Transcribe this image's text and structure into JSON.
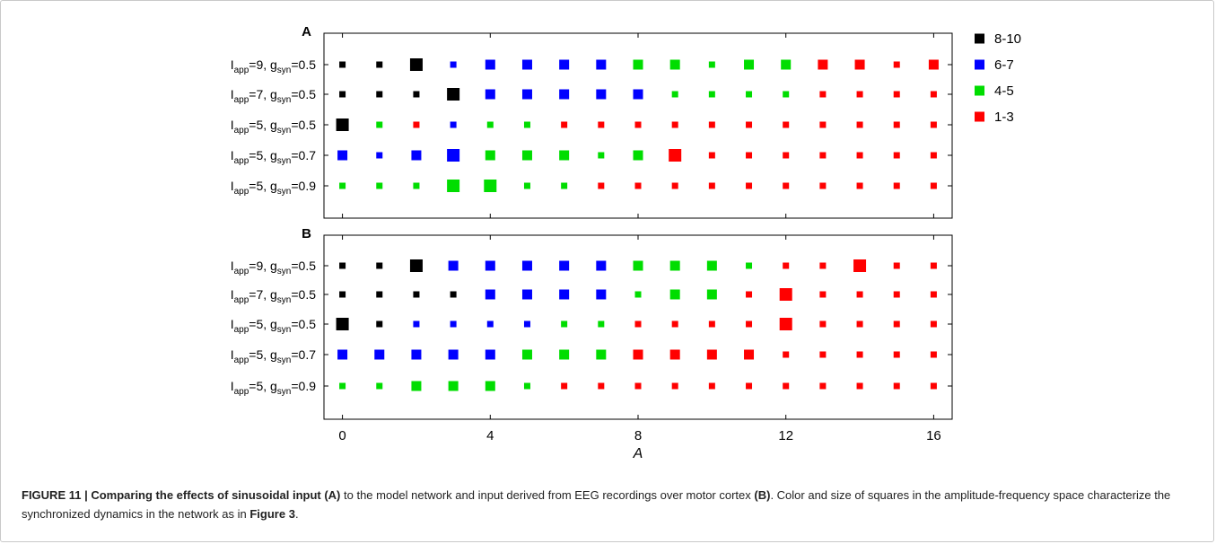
{
  "chart_data": [
    {
      "type": "scatter",
      "panel_label": "A",
      "xlabel": "",
      "row_labels": [
        {
          "base": "I",
          "sub1": "app",
          "mid": "=9, g",
          "sub2": "syn",
          "end": "=0.5"
        },
        {
          "base": "I",
          "sub1": "app",
          "mid": "=7, g",
          "sub2": "syn",
          "end": "=0.5"
        },
        {
          "base": "I",
          "sub1": "app",
          "mid": "=5, g",
          "sub2": "syn",
          "end": "=0.5"
        },
        {
          "base": "I",
          "sub1": "app",
          "mid": "=5, g",
          "sub2": "syn",
          "end": "=0.7"
        },
        {
          "base": "I",
          "sub1": "app",
          "mid": "=5, g",
          "sub2": "syn",
          "end": "=0.9"
        }
      ],
      "x": [
        0,
        1,
        2,
        3,
        4,
        5,
        6,
        7,
        8,
        9,
        10,
        11,
        12,
        13,
        14,
        15,
        16
      ],
      "xlim": [
        -0.5,
        16.5
      ],
      "x_ticks": [
        0,
        4,
        8,
        12,
        16
      ],
      "legend": {
        "placement": "top-right",
        "entries": [
          {
            "label": "8-10",
            "color": "#000000"
          },
          {
            "label": "6-7",
            "color": "#0000ff"
          },
          {
            "label": "4-5",
            "color": "#00dd00"
          },
          {
            "label": "1-3",
            "color": "#ff0000"
          }
        ]
      },
      "cells": [
        [
          [
            0,
            1
          ],
          [
            0,
            1
          ],
          [
            0,
            3
          ],
          [
            1,
            1
          ],
          [
            1,
            2
          ],
          [
            1,
            2
          ],
          [
            1,
            2
          ],
          [
            1,
            2
          ],
          [
            2,
            2
          ],
          [
            2,
            2
          ],
          [
            2,
            1
          ],
          [
            2,
            2
          ],
          [
            2,
            2
          ],
          [
            3,
            2
          ],
          [
            3,
            2
          ],
          [
            3,
            1
          ],
          [
            3,
            2
          ]
        ],
        [
          [
            0,
            1
          ],
          [
            0,
            1
          ],
          [
            0,
            1
          ],
          [
            0,
            3
          ],
          [
            1,
            2
          ],
          [
            1,
            2
          ],
          [
            1,
            2
          ],
          [
            1,
            2
          ],
          [
            1,
            2
          ],
          [
            2,
            1
          ],
          [
            2,
            1
          ],
          [
            2,
            1
          ],
          [
            2,
            1
          ],
          [
            3,
            1
          ],
          [
            3,
            1
          ],
          [
            3,
            1
          ],
          [
            3,
            1
          ]
        ],
        [
          [
            0,
            3
          ],
          [
            2,
            1
          ],
          [
            3,
            1
          ],
          [
            1,
            1
          ],
          [
            2,
            1
          ],
          [
            2,
            1
          ],
          [
            3,
            1
          ],
          [
            3,
            1
          ],
          [
            3,
            1
          ],
          [
            3,
            1
          ],
          [
            3,
            1
          ],
          [
            3,
            1
          ],
          [
            3,
            1
          ],
          [
            3,
            1
          ],
          [
            3,
            1
          ],
          [
            3,
            1
          ],
          [
            3,
            1
          ]
        ],
        [
          [
            1,
            2
          ],
          [
            1,
            1
          ],
          [
            1,
            2
          ],
          [
            1,
            3
          ],
          [
            2,
            2
          ],
          [
            2,
            2
          ],
          [
            2,
            2
          ],
          [
            2,
            1
          ],
          [
            2,
            2
          ],
          [
            3,
            3
          ],
          [
            3,
            1
          ],
          [
            3,
            1
          ],
          [
            3,
            1
          ],
          [
            3,
            1
          ],
          [
            3,
            1
          ],
          [
            3,
            1
          ],
          [
            3,
            1
          ]
        ],
        [
          [
            2,
            1
          ],
          [
            2,
            1
          ],
          [
            2,
            1
          ],
          [
            2,
            3
          ],
          [
            2,
            3
          ],
          [
            2,
            1
          ],
          [
            2,
            1
          ],
          [
            3,
            1
          ],
          [
            3,
            1
          ],
          [
            3,
            1
          ],
          [
            3,
            1
          ],
          [
            3,
            1
          ],
          [
            3,
            1
          ],
          [
            3,
            1
          ],
          [
            3,
            1
          ],
          [
            3,
            1
          ],
          [
            3,
            1
          ]
        ]
      ]
    },
    {
      "type": "scatter",
      "panel_label": "B",
      "xlabel": "A",
      "row_labels": [
        {
          "base": "I",
          "sub1": "app",
          "mid": "=9, g",
          "sub2": "syn",
          "end": "=0.5"
        },
        {
          "base": "I",
          "sub1": "app",
          "mid": "=7, g",
          "sub2": "syn",
          "end": "=0.5"
        },
        {
          "base": "I",
          "sub1": "app",
          "mid": "=5, g",
          "sub2": "syn",
          "end": "=0.5"
        },
        {
          "base": "I",
          "sub1": "app",
          "mid": "=5, g",
          "sub2": "syn",
          "end": "=0.7"
        },
        {
          "base": "I",
          "sub1": "app",
          "mid": "=5, g",
          "sub2": "syn",
          "end": "=0.9"
        }
      ],
      "x": [
        0,
        1,
        2,
        3,
        4,
        5,
        6,
        7,
        8,
        9,
        10,
        11,
        12,
        13,
        14,
        15,
        16
      ],
      "xlim": [
        -0.5,
        16.5
      ],
      "x_ticks": [
        0,
        4,
        8,
        12,
        16
      ],
      "x_tick_labels": [
        "0",
        "4",
        "8",
        "12",
        "16"
      ],
      "cells": [
        [
          [
            0,
            1
          ],
          [
            0,
            1
          ],
          [
            0,
            3
          ],
          [
            1,
            2
          ],
          [
            1,
            2
          ],
          [
            1,
            2
          ],
          [
            1,
            2
          ],
          [
            1,
            2
          ],
          [
            2,
            2
          ],
          [
            2,
            2
          ],
          [
            2,
            2
          ],
          [
            2,
            1
          ],
          [
            3,
            1
          ],
          [
            3,
            1
          ],
          [
            3,
            3
          ],
          [
            3,
            1
          ],
          [
            3,
            1
          ]
        ],
        [
          [
            0,
            1
          ],
          [
            0,
            1
          ],
          [
            0,
            1
          ],
          [
            0,
            1
          ],
          [
            1,
            2
          ],
          [
            1,
            2
          ],
          [
            1,
            2
          ],
          [
            1,
            2
          ],
          [
            2,
            1
          ],
          [
            2,
            2
          ],
          [
            2,
            2
          ],
          [
            3,
            1
          ],
          [
            3,
            3
          ],
          [
            3,
            1
          ],
          [
            3,
            1
          ],
          [
            3,
            1
          ],
          [
            3,
            1
          ]
        ],
        [
          [
            0,
            3
          ],
          [
            0,
            1
          ],
          [
            1,
            1
          ],
          [
            1,
            1
          ],
          [
            1,
            1
          ],
          [
            1,
            1
          ],
          [
            2,
            1
          ],
          [
            2,
            1
          ],
          [
            3,
            1
          ],
          [
            3,
            1
          ],
          [
            3,
            1
          ],
          [
            3,
            1
          ],
          [
            3,
            3
          ],
          [
            3,
            1
          ],
          [
            3,
            1
          ],
          [
            3,
            1
          ],
          [
            3,
            1
          ]
        ],
        [
          [
            1,
            2
          ],
          [
            1,
            2
          ],
          [
            1,
            2
          ],
          [
            1,
            2
          ],
          [
            1,
            2
          ],
          [
            2,
            2
          ],
          [
            2,
            2
          ],
          [
            2,
            2
          ],
          [
            3,
            2
          ],
          [
            3,
            2
          ],
          [
            3,
            2
          ],
          [
            3,
            2
          ],
          [
            3,
            1
          ],
          [
            3,
            1
          ],
          [
            3,
            1
          ],
          [
            3,
            1
          ],
          [
            3,
            1
          ]
        ],
        [
          [
            2,
            1
          ],
          [
            2,
            1
          ],
          [
            2,
            2
          ],
          [
            2,
            2
          ],
          [
            2,
            2
          ],
          [
            2,
            1
          ],
          [
            3,
            1
          ],
          [
            3,
            1
          ],
          [
            3,
            1
          ],
          [
            3,
            1
          ],
          [
            3,
            1
          ],
          [
            3,
            1
          ],
          [
            3,
            1
          ],
          [
            3,
            1
          ],
          [
            3,
            1
          ],
          [
            3,
            1
          ],
          [
            3,
            1
          ]
        ]
      ]
    }
  ],
  "caption": {
    "figure_id": "FIGURE 11 | ",
    "bold_part": "Comparing the effects of sinusoidal input (A)",
    "text1": " to the model network and input derived from EEG recordings over motor cortex ",
    "bold2": "(B)",
    "text2": ". Color and size of squares in the amplitude-frequency space characterize the synchronized dynamics in the network as in ",
    "bold3": "Figure 3",
    "text3": "."
  }
}
